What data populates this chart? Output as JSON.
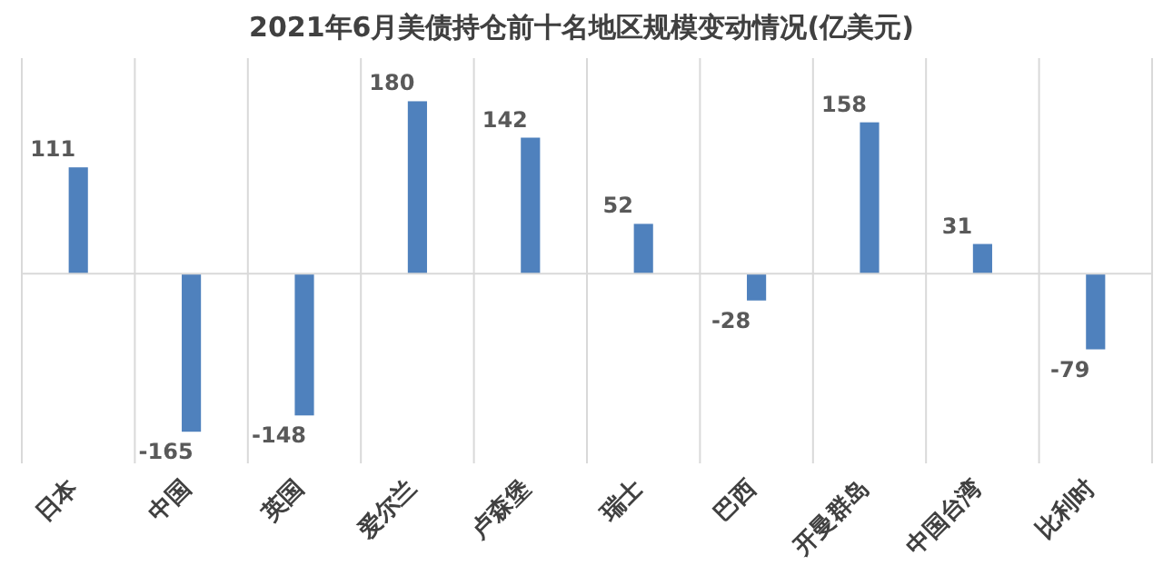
{
  "chart_data": {
    "type": "bar",
    "title": "2021年6月美债持仓前十名地区规模变动情况(亿美元)",
    "categories": [
      "日本",
      "中国",
      "英国",
      "爱尔兰",
      "卢森堡",
      "瑞士",
      "巴西",
      "开曼群岛",
      "中国台湾",
      "比利时"
    ],
    "values": [
      111,
      -165,
      -148,
      180,
      142,
      52,
      -28,
      158,
      31,
      -79
    ],
    "color": "#4f81bd",
    "data_labels": true,
    "grid": "x"
  }
}
